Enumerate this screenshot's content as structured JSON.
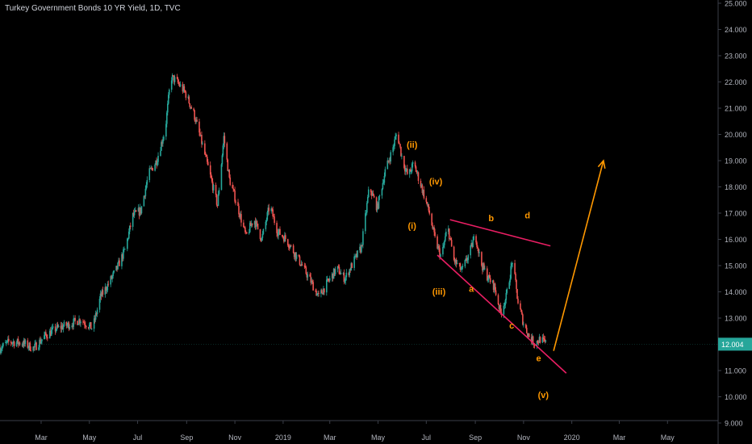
{
  "header": {
    "title": "Turkey Government Bonds 10 YR Yield, 1D, TVC"
  },
  "colors": {
    "background": "#000000",
    "up": "#26a69a",
    "down": "#ef5350",
    "axis_text": "#b2b5be",
    "axis_line": "#3a3e48",
    "trendline": "#e91e63",
    "projection": "#ff9800",
    "label": "#ff9800",
    "price_badge": "#26a69a"
  },
  "chart_data": {
    "type": "candlestick",
    "title": "Turkey Government Bonds 10 YR Yield, 1D, TVC",
    "y_axis": {
      "side": "right",
      "ylim": [
        9.0,
        25.0
      ],
      "tick_labels": [
        "25.000",
        "24.000",
        "23.000",
        "22.000",
        "21.000",
        "20.000",
        "19.000",
        "18.000",
        "17.000",
        "16.000",
        "15.000",
        "14.000",
        "13.000",
        "12.000",
        "11.000",
        "10.000",
        "9.000"
      ],
      "ticks": [
        25,
        24,
        23,
        22,
        21,
        20,
        19,
        18,
        17,
        16,
        15,
        14,
        13,
        12,
        11,
        10,
        9
      ]
    },
    "x_axis": {
      "tick_labels": [
        "Mar",
        "May",
        "Jul",
        "Sep",
        "Nov",
        "2019",
        "Mar",
        "May",
        "Jul",
        "Sep",
        "Nov",
        "2020",
        "Mar",
        "May"
      ],
      "ticks": [
        "2018-03-01",
        "2018-05-01",
        "2018-07-01",
        "2018-09-01",
        "2018-11-01",
        "2019-01-01",
        "2019-03-01",
        "2019-05-01",
        "2019-07-01",
        "2019-09-01",
        "2019-11-01",
        "2020-01-01",
        "2020-03-01",
        "2020-05-01"
      ],
      "range": [
        "2018-01-08",
        "2020-07-04"
      ]
    },
    "series": [
      {
        "values": [
          [
            "2018-01-08",
            11.85
          ],
          [
            "2018-01-20",
            12.1
          ],
          [
            "2018-02-05",
            12.05
          ],
          [
            "2018-02-20",
            11.85
          ],
          [
            "2018-03-05",
            12.3
          ],
          [
            "2018-03-20",
            12.6
          ],
          [
            "2018-04-05",
            12.75
          ],
          [
            "2018-04-20",
            12.95
          ],
          [
            "2018-05-05",
            12.6
          ],
          [
            "2018-05-15",
            13.8
          ],
          [
            "2018-05-25",
            14.3
          ],
          [
            "2018-06-05",
            14.9
          ],
          [
            "2018-06-15",
            15.6
          ],
          [
            "2018-06-25",
            16.9
          ],
          [
            "2018-07-05",
            17.1
          ],
          [
            "2018-07-15",
            18.5
          ],
          [
            "2018-07-25",
            19.0
          ],
          [
            "2018-08-05",
            20.2
          ],
          [
            "2018-08-12",
            22.2
          ],
          [
            "2018-08-20",
            22.0
          ],
          [
            "2018-08-30",
            21.6
          ],
          [
            "2018-09-10",
            20.8
          ],
          [
            "2018-09-20",
            19.7
          ],
          [
            "2018-10-01",
            18.4
          ],
          [
            "2018-10-10",
            17.3
          ],
          [
            "2018-10-18",
            19.9
          ],
          [
            "2018-10-25",
            18.3
          ],
          [
            "2018-11-05",
            17.2
          ],
          [
            "2018-11-15",
            16.1
          ],
          [
            "2018-11-25",
            16.8
          ],
          [
            "2018-12-05",
            16.0
          ],
          [
            "2018-12-15",
            17.3
          ],
          [
            "2018-12-25",
            16.3
          ],
          [
            "2019-01-05",
            16.0
          ],
          [
            "2019-01-15",
            15.5
          ],
          [
            "2019-01-25",
            15.0
          ],
          [
            "2019-02-05",
            14.4
          ],
          [
            "2019-02-15",
            13.8
          ],
          [
            "2019-02-25",
            14.3
          ],
          [
            "2019-03-10",
            14.9
          ],
          [
            "2019-03-20",
            14.5
          ],
          [
            "2019-04-01",
            15.2
          ],
          [
            "2019-04-10",
            15.7
          ],
          [
            "2019-04-20",
            18.0
          ],
          [
            "2019-04-30",
            17.2
          ],
          [
            "2019-05-10",
            18.6
          ],
          [
            "2019-05-20",
            19.5
          ],
          [
            "2019-05-25",
            20.1
          ],
          [
            "2019-06-01",
            19.0
          ],
          [
            "2019-06-08",
            18.4
          ],
          [
            "2019-06-15",
            18.9
          ],
          [
            "2019-06-25",
            18.0
          ],
          [
            "2019-07-05",
            17.0
          ],
          [
            "2019-07-12",
            16.0
          ],
          [
            "2019-07-20",
            15.3
          ],
          [
            "2019-07-28",
            16.5
          ],
          [
            "2019-08-05",
            15.2
          ],
          [
            "2019-08-15",
            14.8
          ],
          [
            "2019-08-25",
            15.5
          ],
          [
            "2019-09-01",
            16.2
          ],
          [
            "2019-09-08",
            15.1
          ],
          [
            "2019-09-16",
            14.6
          ],
          [
            "2019-09-25",
            14.2
          ],
          [
            "2019-10-03",
            13.2
          ],
          [
            "2019-10-10",
            13.8
          ],
          [
            "2019-10-18",
            15.2
          ],
          [
            "2019-10-25",
            13.6
          ],
          [
            "2019-11-01",
            12.8
          ],
          [
            "2019-11-08",
            12.3
          ],
          [
            "2019-11-15",
            12.05
          ],
          [
            "2019-11-22",
            12.2
          ],
          [
            "2019-11-30",
            12.0
          ]
        ]
      }
    ],
    "last_price": {
      "value": 12.004,
      "label": "12.004"
    },
    "annotations": {
      "wave_labels": [
        {
          "text": "(ii)",
          "x": "2019-06-13",
          "y": 19.5
        },
        {
          "text": "(iv)",
          "x": "2019-07-13",
          "y": 18.1
        },
        {
          "text": "(i)",
          "x": "2019-06-13",
          "y": 16.4
        },
        {
          "text": "(iii)",
          "x": "2019-07-17",
          "y": 13.9
        },
        {
          "text": "a",
          "x": "2019-08-27",
          "y": 14.0
        },
        {
          "text": "b",
          "x": "2019-09-21",
          "y": 16.7
        },
        {
          "text": "c",
          "x": "2019-10-17",
          "y": 12.6
        },
        {
          "text": "d",
          "x": "2019-11-06",
          "y": 16.8
        },
        {
          "text": "e",
          "x": "2019-11-20",
          "y": 11.35
        },
        {
          "text": "(v)",
          "x": "2019-11-26",
          "y": 9.95
        }
      ],
      "trendlines": [
        {
          "from": [
            "2019-07-31",
            16.75
          ],
          "to": [
            "2019-12-05",
            15.75
          ]
        },
        {
          "from": [
            "2019-07-15",
            15.4
          ],
          "to": [
            "2019-12-25",
            10.9
          ]
        }
      ],
      "projection_arrow": {
        "from": [
          "2019-12-09",
          11.75
        ],
        "to": [
          "2020-02-10",
          19.0
        ]
      }
    }
  }
}
